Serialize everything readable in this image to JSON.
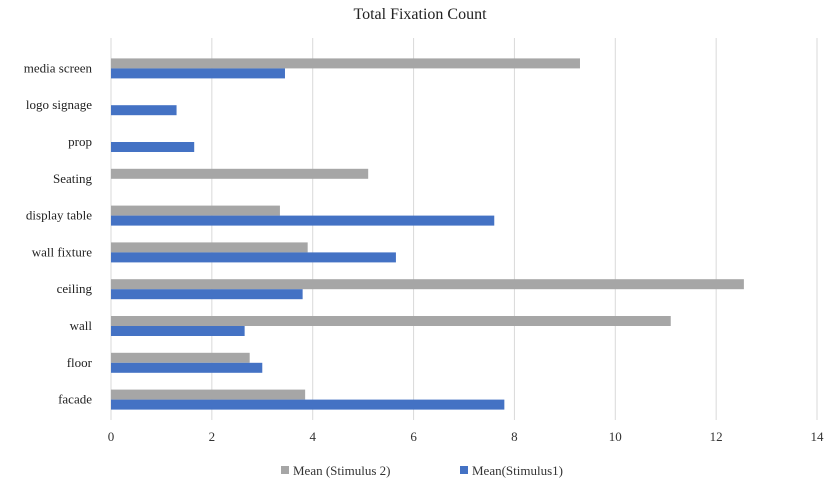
{
  "chart_data": {
    "type": "bar",
    "orientation": "horizontal",
    "title": "Total Fixation Count",
    "xlabel": "",
    "ylabel": "",
    "categories": [
      "media screen",
      "logo signage",
      "prop",
      "Seating",
      "display table",
      "wall fixture",
      "ceiling",
      "wall",
      "floor",
      "facade"
    ],
    "series": [
      {
        "name": "Mean (Stimulus 2)",
        "color": "#a6a6a6",
        "values": [
          9.3,
          0,
          0,
          5.1,
          3.35,
          3.9,
          12.55,
          11.1,
          2.75,
          3.85
        ]
      },
      {
        "name": "Mean(Stimulus1)",
        "color": "#4472c4",
        "values": [
          3.45,
          1.3,
          1.65,
          0,
          7.6,
          5.65,
          3.8,
          2.65,
          3.0,
          7.8
        ]
      }
    ],
    "xlim": [
      0,
      14
    ],
    "xticks": [
      0,
      2,
      4,
      6,
      8,
      10,
      12,
      14
    ],
    "grid": true,
    "legend_position": "bottom"
  }
}
